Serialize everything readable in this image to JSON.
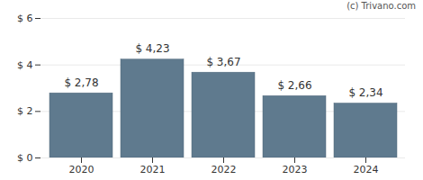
{
  "chart_data": {
    "type": "bar",
    "caption": "(c) Trivano.com",
    "categories": [
      "2020",
      "2021",
      "2022",
      "2023",
      "2024"
    ],
    "values": [
      2.78,
      4.23,
      3.67,
      2.66,
      2.34
    ],
    "value_labels": [
      "$ 2,78",
      "$ 4,23",
      "$ 3,67",
      "$ 2,66",
      "$ 2,34"
    ],
    "data_labels": true,
    "color": "#5f7a8e",
    "ylim": [
      0,
      6
    ],
    "yticks": [
      {
        "value": 0,
        "label": "$ 0"
      },
      {
        "value": 2,
        "label": "$ 2"
      },
      {
        "value": 4,
        "label": "$ 4"
      },
      {
        "value": 6,
        "label": "$ 6"
      }
    ],
    "grid": true
  }
}
